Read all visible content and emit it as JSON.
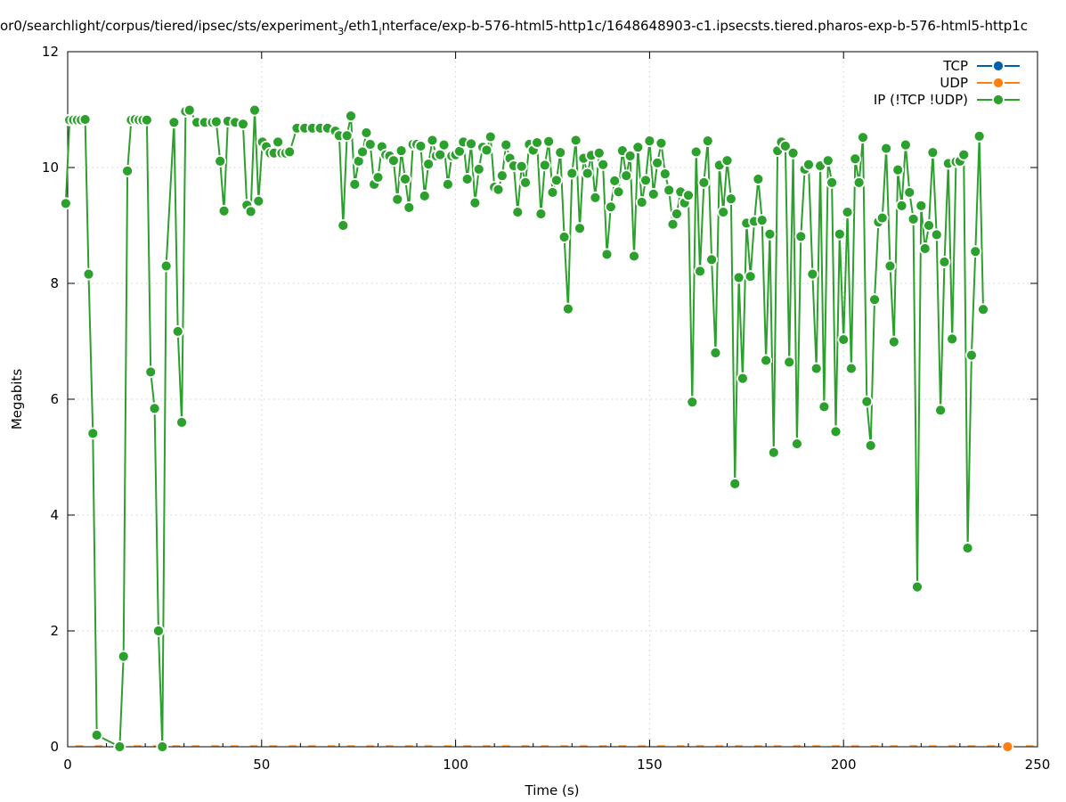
{
  "chart_data": {
    "type": "line",
    "title": "or0/searchlight/corpus/tiered/ipsec/sts/experiment",
    "title_sub1": "3",
    "title_mid": "/eth1",
    "title_sub2": "i",
    "title_tail": "nterface/exp-b-576-html5-http1c/1648648903-c1.ipsecsts.tiered.pharos-exp-b-576-html5-http1c",
    "xlabel": "Time (s)",
    "ylabel": "Megabits",
    "xlim": [
      0,
      250
    ],
    "ylim": [
      0,
      12
    ],
    "x_ticks": [
      "0",
      "50",
      "100",
      "150",
      "200",
      "250"
    ],
    "y_ticks": [
      "0",
      "2",
      "4",
      "6",
      "8",
      "10",
      "12"
    ],
    "grid": true,
    "legend_position": "top-right",
    "legend": [
      "TCP",
      "UDP",
      "IP (!TCP  !UDP)"
    ],
    "series": [
      {
        "name": "TCP",
        "color": "#0060ad",
        "points": []
      },
      {
        "name": "UDP",
        "color": "#ff7f0e",
        "points": [
          [
            242.3,
            0
          ]
        ]
      },
      {
        "name": "IP (!TCP  !UDP)",
        "color": "#2ca02c",
        "points": [
          [
            -0.5,
            9.38
          ],
          [
            0.5,
            10.82
          ],
          [
            1.5,
            10.82
          ],
          [
            2.5,
            10.82
          ],
          [
            3.5,
            10.82
          ],
          [
            4.5,
            10.83
          ],
          [
            5.4,
            8.16
          ],
          [
            6.5,
            5.41
          ],
          [
            7.5,
            0.2
          ],
          [
            13.4,
            0
          ],
          [
            14.4,
            1.56
          ],
          [
            15.4,
            9.94
          ],
          [
            16.4,
            10.82
          ],
          [
            17.4,
            10.83
          ],
          [
            18.4,
            10.82
          ],
          [
            19.4,
            10.82
          ],
          [
            20.4,
            10.82
          ],
          [
            21.4,
            6.47
          ],
          [
            22.4,
            5.84
          ],
          [
            23.4,
            2.0
          ],
          [
            24.4,
            0
          ],
          [
            25.4,
            8.3
          ],
          [
            27.4,
            10.78
          ],
          [
            28.4,
            7.17
          ],
          [
            29.4,
            5.6
          ],
          [
            30.4,
            10.97
          ],
          [
            31.4,
            10.99
          ],
          [
            33.3,
            10.78
          ],
          [
            35.3,
            10.78
          ],
          [
            37.3,
            10.78
          ],
          [
            38.3,
            10.79
          ],
          [
            39.3,
            10.11
          ],
          [
            40.3,
            9.25
          ],
          [
            41.3,
            10.8
          ],
          [
            43.2,
            10.78
          ],
          [
            45.2,
            10.75
          ],
          [
            46.2,
            9.35
          ],
          [
            47.2,
            9.24
          ],
          [
            48.2,
            10.99
          ],
          [
            49.2,
            9.42
          ],
          [
            50.2,
            10.44
          ],
          [
            51.2,
            10.36
          ],
          [
            52.2,
            10.25
          ],
          [
            53.2,
            10.25
          ],
          [
            54.2,
            10.44
          ],
          [
            55.2,
            10.25
          ],
          [
            56.2,
            10.25
          ],
          [
            57.2,
            10.27
          ],
          [
            59.1,
            10.68
          ],
          [
            61.1,
            10.68
          ],
          [
            63.1,
            10.68
          ],
          [
            65.1,
            10.68
          ],
          [
            67.0,
            10.68
          ],
          [
            69.0,
            10.63
          ],
          [
            70.0,
            10.55
          ],
          [
            71.0,
            9.0
          ],
          [
            72.0,
            10.55
          ],
          [
            73.0,
            10.89
          ],
          [
            74.0,
            9.71
          ],
          [
            75.0,
            10.11
          ],
          [
            76.0,
            10.27
          ],
          [
            77.0,
            10.6
          ],
          [
            78.0,
            10.4
          ],
          [
            79.0,
            9.71
          ],
          [
            80.0,
            9.83
          ],
          [
            81.0,
            10.36
          ],
          [
            82.0,
            10.22
          ],
          [
            83.0,
            10.2
          ],
          [
            84.0,
            10.12
          ],
          [
            85.0,
            9.45
          ],
          [
            86.0,
            10.29
          ],
          [
            87.0,
            9.8
          ],
          [
            88.0,
            9.31
          ],
          [
            89.0,
            10.4
          ],
          [
            90.0,
            10.4
          ],
          [
            91.0,
            10.37
          ],
          [
            92.0,
            9.51
          ],
          [
            93.0,
            10.06
          ],
          [
            94.0,
            10.47
          ],
          [
            95.0,
            10.2
          ],
          [
            96.0,
            10.22
          ],
          [
            97.0,
            10.39
          ],
          [
            98.0,
            9.71
          ],
          [
            99.0,
            10.2
          ],
          [
            100.0,
            10.22
          ],
          [
            101.0,
            10.28
          ],
          [
            102.0,
            10.44
          ],
          [
            103.0,
            9.8
          ],
          [
            104.0,
            10.41
          ],
          [
            105.0,
            9.39
          ],
          [
            106.0,
            9.97
          ],
          [
            107.0,
            10.35
          ],
          [
            108.0,
            10.3
          ],
          [
            109.0,
            10.53
          ],
          [
            110.0,
            9.66
          ],
          [
            111.0,
            9.62
          ],
          [
            112.0,
            9.86
          ],
          [
            113.0,
            10.39
          ],
          [
            114.0,
            10.16
          ],
          [
            115.0,
            10.03
          ],
          [
            116.0,
            9.23
          ],
          [
            117.0,
            10.02
          ],
          [
            118.0,
            9.74
          ],
          [
            119.0,
            10.4
          ],
          [
            120.0,
            10.3
          ],
          [
            121.0,
            10.43
          ],
          [
            122.0,
            9.2
          ],
          [
            123.0,
            10.04
          ],
          [
            124.0,
            10.45
          ],
          [
            125.0,
            9.57
          ],
          [
            126.0,
            9.78
          ],
          [
            127.0,
            10.26
          ],
          [
            128.0,
            8.8
          ],
          [
            129.0,
            7.56
          ],
          [
            130.0,
            9.9
          ],
          [
            131.0,
            10.47
          ],
          [
            132.0,
            8.95
          ],
          [
            133.0,
            10.16
          ],
          [
            134.0,
            9.9
          ],
          [
            135.0,
            10.21
          ],
          [
            136.0,
            9.48
          ],
          [
            137.0,
            10.25
          ],
          [
            138.0,
            10.05
          ],
          [
            139.0,
            8.5
          ],
          [
            140.0,
            9.32
          ],
          [
            141.0,
            9.77
          ],
          [
            142.0,
            9.58
          ],
          [
            143.0,
            10.29
          ],
          [
            144.0,
            9.86
          ],
          [
            145.0,
            10.2
          ],
          [
            146.0,
            8.47
          ],
          [
            147.0,
            10.35
          ],
          [
            148.0,
            9.4
          ],
          [
            149.0,
            9.78
          ],
          [
            150.0,
            10.46
          ],
          [
            151.0,
            9.54
          ],
          [
            152.0,
            10.08
          ],
          [
            153.0,
            10.42
          ],
          [
            154.0,
            9.89
          ],
          [
            155.0,
            9.61
          ],
          [
            156.0,
            9.02
          ],
          [
            157.0,
            9.2
          ],
          [
            158.0,
            9.58
          ],
          [
            159.0,
            9.39
          ],
          [
            160.0,
            9.52
          ],
          [
            161.0,
            5.95
          ],
          [
            162.0,
            10.27
          ],
          [
            163.0,
            8.21
          ],
          [
            164.0,
            9.74
          ],
          [
            165.0,
            10.46
          ],
          [
            166.0,
            8.41
          ],
          [
            167.0,
            6.8
          ],
          [
            168.0,
            10.04
          ],
          [
            169.0,
            9.23
          ],
          [
            170.0,
            10.12
          ],
          [
            171.0,
            9.46
          ],
          [
            172.0,
            4.54
          ],
          [
            173.0,
            8.1
          ],
          [
            174.0,
            6.36
          ],
          [
            175.0,
            9.04
          ],
          [
            176.0,
            8.12
          ],
          [
            177.0,
            9.07
          ],
          [
            178.0,
            9.8
          ],
          [
            179.0,
            9.09
          ],
          [
            180.0,
            6.67
          ],
          [
            181.0,
            8.85
          ],
          [
            182.0,
            5.08
          ],
          [
            183.0,
            10.29
          ],
          [
            184.0,
            10.44
          ],
          [
            185.0,
            10.37
          ],
          [
            186.0,
            6.64
          ],
          [
            187.0,
            10.25
          ],
          [
            188.0,
            5.23
          ],
          [
            189.0,
            8.81
          ],
          [
            190.0,
            9.97
          ],
          [
            191.0,
            10.05
          ],
          [
            192.0,
            8.16
          ],
          [
            193.0,
            6.53
          ],
          [
            194.0,
            10.03
          ],
          [
            195.0,
            5.87
          ],
          [
            196.0,
            10.12
          ],
          [
            197.0,
            9.74
          ],
          [
            198.0,
            5.44
          ],
          [
            199.0,
            8.85
          ],
          [
            200.0,
            7.03
          ],
          [
            201.0,
            9.23
          ],
          [
            202.0,
            6.53
          ],
          [
            203.0,
            10.15
          ],
          [
            204.0,
            9.74
          ],
          [
            205.0,
            10.52
          ],
          [
            206.0,
            5.96
          ],
          [
            207.0,
            5.2
          ],
          [
            208.0,
            7.72
          ],
          [
            209.0,
            9.06
          ],
          [
            210.0,
            9.13
          ],
          [
            211.0,
            10.33
          ],
          [
            212.0,
            8.3
          ],
          [
            213.0,
            6.99
          ],
          [
            214.0,
            9.96
          ],
          [
            215.0,
            9.34
          ],
          [
            216.0,
            10.39
          ],
          [
            217.0,
            9.57
          ],
          [
            218.0,
            9.11
          ],
          [
            219.0,
            2.76
          ],
          [
            220.0,
            9.34
          ],
          [
            221.0,
            8.6
          ],
          [
            222.0,
            9.0
          ],
          [
            223.0,
            10.26
          ],
          [
            224.0,
            8.84
          ],
          [
            225.0,
            5.81
          ],
          [
            226.0,
            8.37
          ],
          [
            227.0,
            10.07
          ],
          [
            228.0,
            7.04
          ],
          [
            229.0,
            10.1
          ],
          [
            230.0,
            10.11
          ],
          [
            231.0,
            10.22
          ],
          [
            232.0,
            3.43
          ],
          [
            233.0,
            6.76
          ],
          [
            234.0,
            8.55
          ],
          [
            235.0,
            10.54
          ],
          [
            236.0,
            7.55
          ]
        ]
      }
    ]
  }
}
